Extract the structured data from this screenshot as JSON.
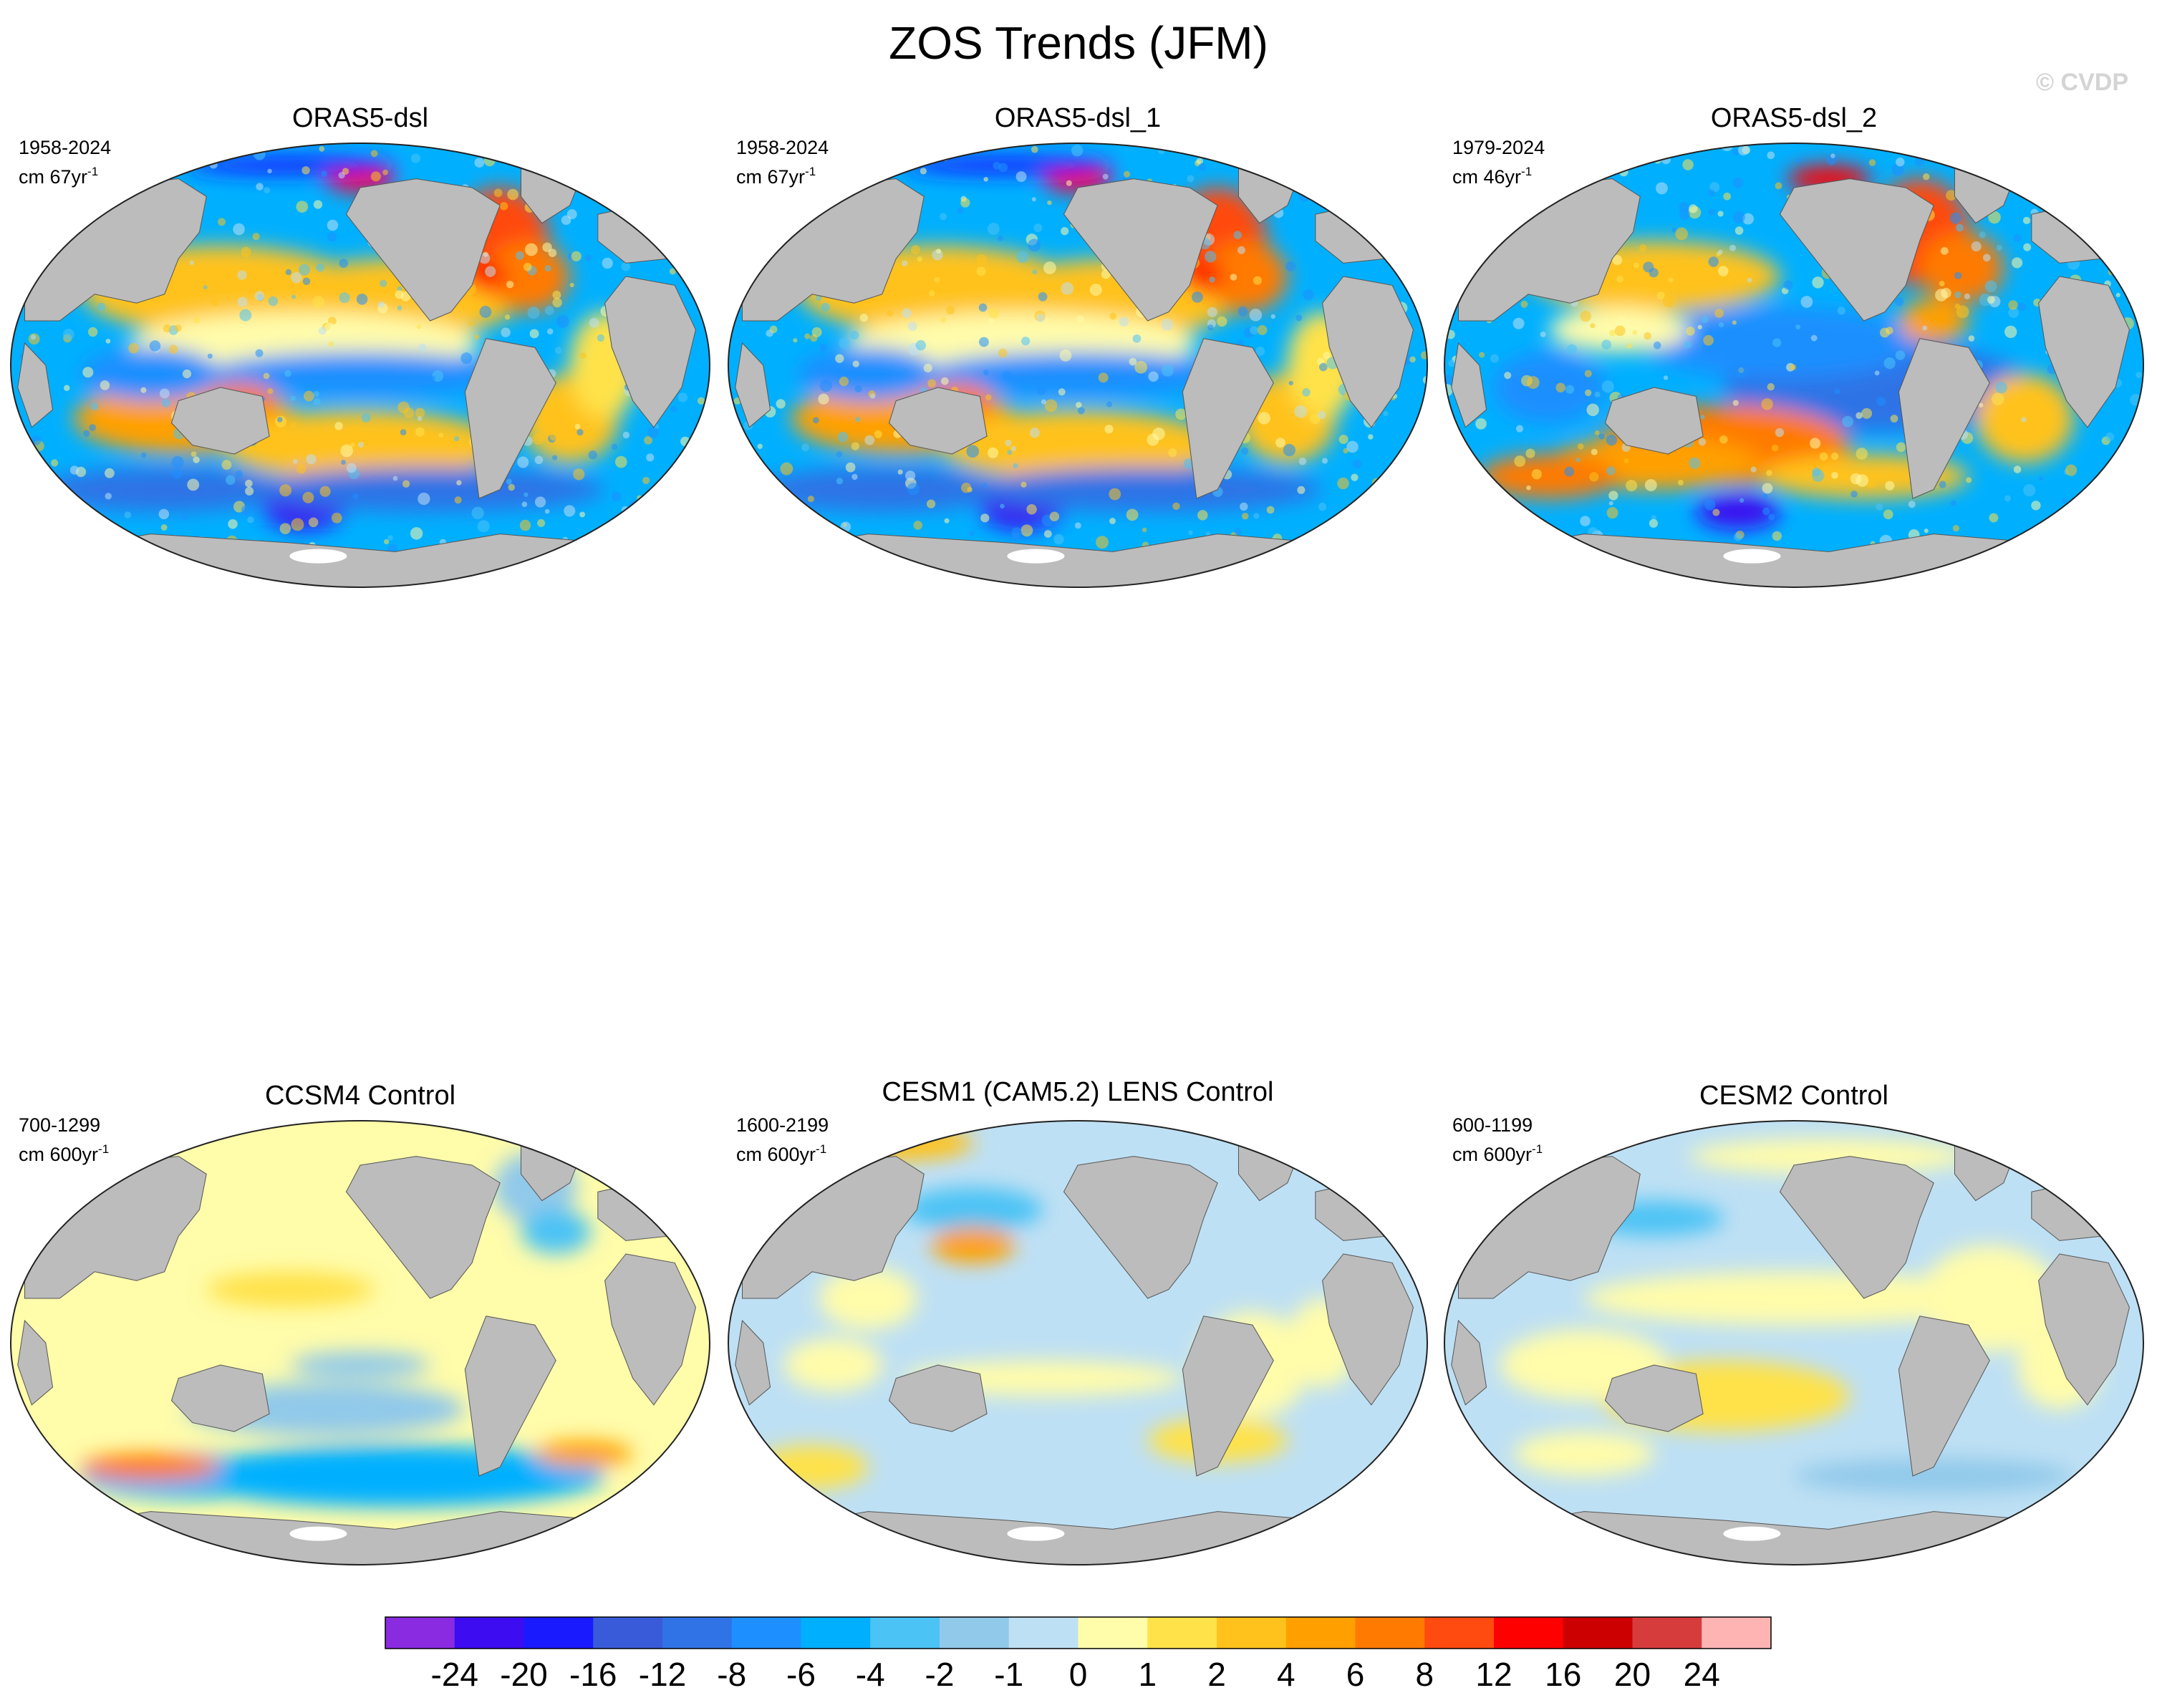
{
  "title": "ZOS Trends (JFM)",
  "copyright": "© CVDP",
  "colors": {
    "land": "#bcbcbc",
    "ice": "#ffffff",
    "outline": "#222222"
  },
  "panels": [
    {
      "title": "ORAS5-dsl",
      "period": "1958-2024",
      "units_base": "cm 67yr",
      "units_exp": "-1",
      "style": "obs_a"
    },
    {
      "title": "ORAS5-dsl_1",
      "period": "1958-2024",
      "units_base": "cm 67yr",
      "units_exp": "-1",
      "style": "obs_a"
    },
    {
      "title": "ORAS5-dsl_2",
      "period": "1979-2024",
      "units_base": "cm 46yr",
      "units_exp": "-1",
      "style": "obs_b"
    },
    {
      "title": "CCSM4 Control",
      "period": "700-1299",
      "units_base": "cm 600yr",
      "units_exp": "-1",
      "style": "ctrl_yellow"
    },
    {
      "title": "CESM1 (CAM5.2) LENS Control",
      "period": "1600-2199",
      "units_base": "cm 600yr",
      "units_exp": "-1",
      "style": "ctrl_blue"
    },
    {
      "title": "CESM2 Control",
      "period": "600-1199",
      "units_base": "cm 600yr",
      "units_exp": "-1",
      "style": "ctrl_mixed"
    }
  ],
  "colorbar": {
    "labels": [
      "-24",
      "-20",
      "-16",
      "-12",
      "-8",
      "-6",
      "-4",
      "-2",
      "-1",
      "0",
      "1",
      "2",
      "4",
      "6",
      "8",
      "12",
      "16",
      "20",
      "24"
    ],
    "colors": [
      "#8a2be2",
      "#3d0cf0",
      "#1a1aff",
      "#3a5bd9",
      "#2f73e6",
      "#1e8fff",
      "#00b0ff",
      "#4cc3f5",
      "#91c9ea",
      "#bee0f4",
      "#fffcaa",
      "#ffe24a",
      "#ffc21c",
      "#ffa000",
      "#ff7a00",
      "#ff4a10",
      "#ff0000",
      "#cc0000",
      "#d63c3c",
      "#ffb4b4"
    ]
  }
}
